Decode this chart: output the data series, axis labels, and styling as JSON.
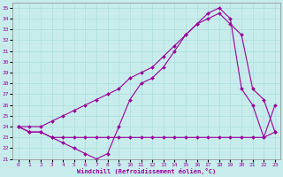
{
  "xlabel": "Windchill (Refroidissement éolien,°C)",
  "bg_color": "#c8ecec",
  "line_color": "#990099",
  "grid_color": "#aadddd",
  "ylim": [
    21,
    35.5
  ],
  "xlim": [
    -0.5,
    23.5
  ],
  "yticks": [
    21,
    22,
    23,
    24,
    25,
    26,
    27,
    28,
    29,
    30,
    31,
    32,
    33,
    34,
    35
  ],
  "xticks": [
    0,
    1,
    2,
    3,
    4,
    5,
    6,
    7,
    8,
    9,
    10,
    11,
    12,
    13,
    14,
    15,
    16,
    17,
    18,
    19,
    20,
    21,
    22,
    23
  ],
  "series": [
    {
      "x": [
        0,
        1,
        2,
        3,
        4,
        5,
        6,
        7,
        8,
        9,
        10,
        11,
        12,
        13,
        14,
        15,
        16,
        17,
        18,
        19,
        20,
        21,
        22,
        23
      ],
      "y": [
        24.0,
        23.5,
        23.5,
        23.0,
        22.5,
        22.0,
        21.5,
        21.0,
        21.5,
        24.0,
        26.5,
        28.0,
        28.5,
        29.5,
        31.0,
        32.5,
        33.5,
        34.5,
        35.0,
        34.0,
        27.5,
        26.0,
        23.0,
        26.0
      ]
    },
    {
      "x": [
        0,
        1,
        2,
        3,
        4,
        5,
        6,
        7,
        8,
        9,
        10,
        11,
        12,
        13,
        14,
        15,
        16,
        17,
        18,
        19,
        20,
        21,
        22,
        23
      ],
      "y": [
        24.0,
        24.0,
        24.0,
        24.5,
        25.0,
        25.5,
        26.0,
        26.5,
        27.0,
        27.5,
        28.5,
        29.0,
        29.5,
        30.5,
        31.5,
        32.5,
        33.5,
        34.0,
        34.5,
        33.5,
        32.5,
        27.5,
        26.5,
        23.5
      ]
    },
    {
      "x": [
        0,
        1,
        2,
        3,
        4,
        5,
        6,
        7,
        8,
        9,
        10,
        11,
        12,
        13,
        14,
        15,
        16,
        17,
        18,
        19,
        20,
        21,
        22,
        23
      ],
      "y": [
        24.0,
        23.5,
        23.5,
        23.0,
        23.0,
        23.0,
        23.0,
        23.0,
        23.0,
        23.0,
        23.0,
        23.0,
        23.0,
        23.0,
        23.0,
        23.0,
        23.0,
        23.0,
        23.0,
        23.0,
        23.0,
        23.0,
        23.0,
        23.5
      ]
    }
  ]
}
